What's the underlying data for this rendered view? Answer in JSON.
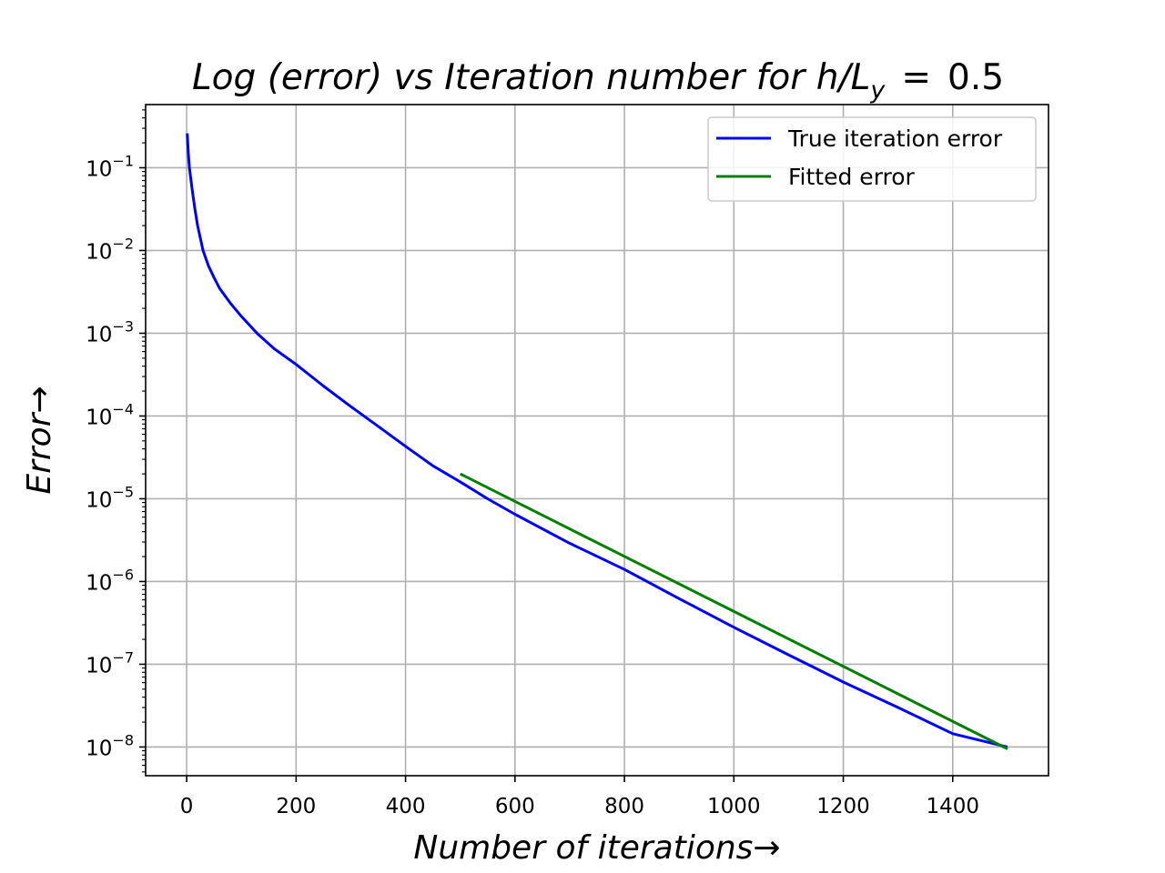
{
  "chart_data": {
    "type": "line",
    "title": {
      "italic_part": "Log (error) vs Iteration number for h/L",
      "subscript": "y",
      "equals": "=",
      "value": "0.5"
    },
    "xlabel": "Number of iterations→",
    "ylabel": "Error→",
    "xlim": [
      -75,
      1575
    ],
    "ylim": [
      4.5e-09,
      0.58
    ],
    "y_scale": "log",
    "grid": true,
    "legend_position": "top-right",
    "x_ticks": [
      {
        "value": 0,
        "label": "0"
      },
      {
        "value": 200,
        "label": "200"
      },
      {
        "value": 400,
        "label": "400"
      },
      {
        "value": 600,
        "label": "600"
      },
      {
        "value": 800,
        "label": "800"
      },
      {
        "value": 1000,
        "label": "1000"
      },
      {
        "value": 1200,
        "label": "1200"
      },
      {
        "value": 1400,
        "label": "1400"
      }
    ],
    "y_ticks": [
      {
        "value": 0.1,
        "base": "10",
        "exp": "−1"
      },
      {
        "value": 0.01,
        "base": "10",
        "exp": "−2"
      },
      {
        "value": 0.001,
        "base": "10",
        "exp": "−3"
      },
      {
        "value": 0.0001,
        "base": "10",
        "exp": "−4"
      },
      {
        "value": 1e-05,
        "base": "10",
        "exp": "−5"
      },
      {
        "value": 1e-06,
        "base": "10",
        "exp": "−6"
      },
      {
        "value": 1e-07,
        "base": "10",
        "exp": "−7"
      },
      {
        "value": 1e-08,
        "base": "10",
        "exp": "−8"
      }
    ],
    "series": [
      {
        "name": "True iteration error",
        "color": "#0000ff",
        "x": [
          1,
          3,
          5,
          10,
          15,
          20,
          30,
          40,
          50,
          60,
          80,
          100,
          130,
          160,
          200,
          250,
          300,
          350,
          400,
          450,
          500,
          550,
          600,
          700,
          800,
          900,
          1000,
          1100,
          1200,
          1300,
          1400,
          1500
        ],
        "y": [
          0.26,
          0.15,
          0.1,
          0.055,
          0.032,
          0.02,
          0.01,
          0.0065,
          0.0047,
          0.0035,
          0.0023,
          0.0016,
          0.00098,
          0.00065,
          0.00042,
          0.00023,
          0.00013,
          7.5e-05,
          4.3e-05,
          2.5e-05,
          1.6e-05,
          1e-05,
          6.5e-06,
          2.9e-06,
          1.4e-06,
          6.2e-07,
          2.8e-07,
          1.3e-07,
          6.1e-08,
          3e-08,
          1.45e-08,
          1e-08
        ]
      },
      {
        "name": "Fitted error",
        "color": "#008000",
        "x": [
          500,
          1500
        ],
        "y": [
          2e-05,
          9.5e-09
        ]
      }
    ]
  }
}
